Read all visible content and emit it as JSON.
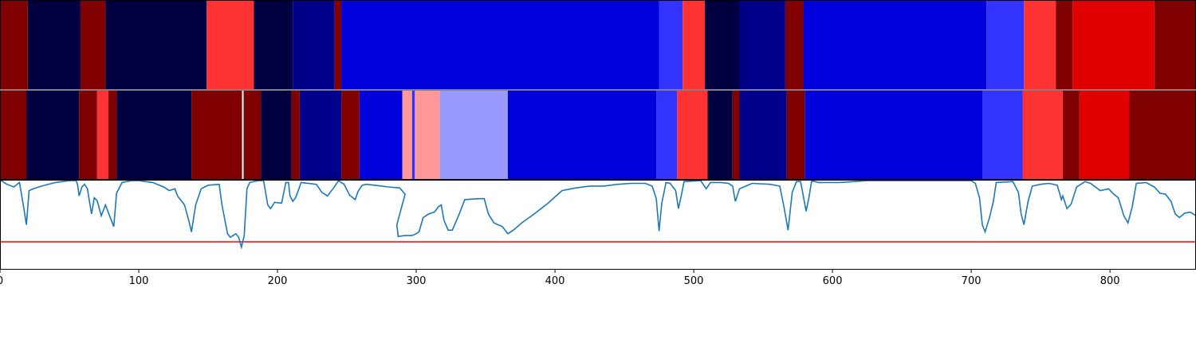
{
  "chart_data": [
    {
      "type": "heatmap",
      "name": "segment-track-1",
      "segments": [
        {
          "start": 0,
          "end": 20,
          "color": "#800000"
        },
        {
          "start": 20,
          "end": 58,
          "color": "#000040"
        },
        {
          "start": 58,
          "end": 76,
          "color": "#800000"
        },
        {
          "start": 76,
          "end": 149,
          "color": "#000040"
        },
        {
          "start": 149,
          "end": 183,
          "color": "#ff3333"
        },
        {
          "start": 183,
          "end": 211,
          "color": "#000040"
        },
        {
          "start": 211,
          "end": 241,
          "color": "#00008b"
        },
        {
          "start": 241,
          "end": 246,
          "color": "#800000"
        },
        {
          "start": 246,
          "end": 475,
          "color": "#0000dd"
        },
        {
          "start": 475,
          "end": 492,
          "color": "#3333ff"
        },
        {
          "start": 492,
          "end": 508,
          "color": "#ff3333"
        },
        {
          "start": 508,
          "end": 533,
          "color": "#000040"
        },
        {
          "start": 533,
          "end": 566,
          "color": "#00008b"
        },
        {
          "start": 566,
          "end": 579,
          "color": "#800000"
        },
        {
          "start": 579,
          "end": 711,
          "color": "#0000dd"
        },
        {
          "start": 711,
          "end": 738,
          "color": "#3333ff"
        },
        {
          "start": 738,
          "end": 761,
          "color": "#ff3333"
        },
        {
          "start": 761,
          "end": 773,
          "color": "#800000"
        },
        {
          "start": 773,
          "end": 832,
          "color": "#e00000"
        },
        {
          "start": 832,
          "end": 862,
          "color": "#800000"
        }
      ]
    },
    {
      "type": "heatmap",
      "name": "segment-track-2",
      "segments": [
        {
          "start": 0,
          "end": 19,
          "color": "#800000"
        },
        {
          "start": 19,
          "end": 57,
          "color": "#000040"
        },
        {
          "start": 57,
          "end": 70,
          "color": "#800000"
        },
        {
          "start": 70,
          "end": 78,
          "color": "#ff3333"
        },
        {
          "start": 78,
          "end": 84,
          "color": "#800000"
        },
        {
          "start": 84,
          "end": 138,
          "color": "#000040"
        },
        {
          "start": 138,
          "end": 188,
          "color": "#800000"
        },
        {
          "start": 188,
          "end": 210,
          "color": "#000040"
        },
        {
          "start": 210,
          "end": 216,
          "color": "#800000"
        },
        {
          "start": 216,
          "end": 246,
          "color": "#00008b"
        },
        {
          "start": 246,
          "end": 259,
          "color": "#800000"
        },
        {
          "start": 259,
          "end": 290,
          "color": "#0000dd"
        },
        {
          "start": 290,
          "end": 297,
          "color": "#ff9999"
        },
        {
          "start": 297,
          "end": 299,
          "color": "#3333ff"
        },
        {
          "start": 299,
          "end": 317,
          "color": "#ff9999"
        },
        {
          "start": 317,
          "end": 366,
          "color": "#9999ff"
        },
        {
          "start": 366,
          "end": 473,
          "color": "#0000dd"
        },
        {
          "start": 473,
          "end": 488,
          "color": "#3333ff"
        },
        {
          "start": 488,
          "end": 510,
          "color": "#ff3333"
        },
        {
          "start": 510,
          "end": 528,
          "color": "#000040"
        },
        {
          "start": 528,
          "end": 533,
          "color": "#800000"
        },
        {
          "start": 533,
          "end": 567,
          "color": "#00008b"
        },
        {
          "start": 567,
          "end": 580,
          "color": "#800000"
        },
        {
          "start": 580,
          "end": 708,
          "color": "#0000dd"
        },
        {
          "start": 708,
          "end": 737,
          "color": "#3333ff"
        },
        {
          "start": 737,
          "end": 766,
          "color": "#ff3333"
        },
        {
          "start": 766,
          "end": 778,
          "color": "#800000"
        },
        {
          "start": 778,
          "end": 814,
          "color": "#e00000"
        },
        {
          "start": 814,
          "end": 862,
          "color": "#800000"
        }
      ],
      "marker_x": 175
    },
    {
      "type": "line",
      "name": "signal-track",
      "xlim": [
        0,
        862
      ],
      "ylim": [
        0,
        1
      ],
      "line_color": "#1f77b4",
      "threshold": 0.31,
      "threshold_color": "#ff0000",
      "xticks": [
        0,
        100,
        200,
        300,
        400,
        500,
        600,
        700,
        800
      ],
      "points": [
        [
          0,
          1.0
        ],
        [
          5,
          0.95
        ],
        [
          10,
          0.92
        ],
        [
          14,
          0.97
        ],
        [
          17,
          0.7
        ],
        [
          19,
          0.5
        ],
        [
          21,
          0.88
        ],
        [
          24,
          0.9
        ],
        [
          30,
          0.93
        ],
        [
          40,
          0.97
        ],
        [
          50,
          0.99
        ],
        [
          55,
          0.99
        ],
        [
          56,
          0.94
        ],
        [
          57,
          0.82
        ],
        [
          59,
          0.92
        ],
        [
          61,
          0.95
        ],
        [
          63,
          0.9
        ],
        [
          66,
          0.62
        ],
        [
          68,
          0.8
        ],
        [
          70,
          0.77
        ],
        [
          73,
          0.6
        ],
        [
          76,
          0.72
        ],
        [
          78,
          0.64
        ],
        [
          82,
          0.48
        ],
        [
          84,
          0.85
        ],
        [
          88,
          0.97
        ],
        [
          95,
          0.99
        ],
        [
          100,
          0.99
        ],
        [
          110,
          0.97
        ],
        [
          118,
          0.92
        ],
        [
          122,
          0.88
        ],
        [
          126,
          0.9
        ],
        [
          128,
          0.82
        ],
        [
          130,
          0.78
        ],
        [
          133,
          0.72
        ],
        [
          136,
          0.55
        ],
        [
          138,
          0.42
        ],
        [
          141,
          0.72
        ],
        [
          145,
          0.9
        ],
        [
          150,
          0.94
        ],
        [
          158,
          0.95
        ],
        [
          160,
          0.72
        ],
        [
          162,
          0.56
        ],
        [
          164,
          0.4
        ],
        [
          166,
          0.36
        ],
        [
          168,
          0.38
        ],
        [
          170,
          0.4
        ],
        [
          172,
          0.36
        ],
        [
          174,
          0.25
        ],
        [
          176,
          0.38
        ],
        [
          178,
          0.9
        ],
        [
          180,
          0.97
        ],
        [
          186,
          0.99
        ],
        [
          190,
          0.99
        ],
        [
          193,
          0.72
        ],
        [
          195,
          0.68
        ],
        [
          198,
          0.75
        ],
        [
          203,
          0.74
        ],
        [
          206,
          0.97
        ],
        [
          208,
          0.97
        ],
        [
          209,
          0.82
        ],
        [
          211,
          0.76
        ],
        [
          213,
          0.8
        ],
        [
          215,
          0.88
        ],
        [
          217,
          0.97
        ],
        [
          228,
          0.95
        ],
        [
          232,
          0.86
        ],
        [
          236,
          0.82
        ],
        [
          240,
          0.9
        ],
        [
          244,
          0.99
        ],
        [
          248,
          0.95
        ],
        [
          252,
          0.83
        ],
        [
          256,
          0.78
        ],
        [
          258,
          0.87
        ],
        [
          261,
          0.94
        ],
        [
          264,
          0.95
        ],
        [
          270,
          0.94
        ],
        [
          280,
          0.92
        ],
        [
          288,
          0.91
        ],
        [
          292,
          0.84
        ],
        [
          286,
          0.5
        ],
        [
          287,
          0.37
        ],
        [
          292,
          0.38
        ],
        [
          297,
          0.38
        ],
        [
          300,
          0.4
        ],
        [
          302,
          0.42
        ],
        [
          305,
          0.58
        ],
        [
          309,
          0.62
        ],
        [
          313,
          0.64
        ],
        [
          316,
          0.7
        ],
        [
          318,
          0.72
        ],
        [
          320,
          0.55
        ],
        [
          323,
          0.44
        ],
        [
          326,
          0.44
        ],
        [
          331,
          0.62
        ],
        [
          335,
          0.78
        ],
        [
          345,
          0.79
        ],
        [
          349,
          0.79
        ],
        [
          352,
          0.62
        ],
        [
          356,
          0.52
        ],
        [
          362,
          0.48
        ],
        [
          366,
          0.4
        ],
        [
          370,
          0.44
        ],
        [
          376,
          0.52
        ],
        [
          385,
          0.62
        ],
        [
          395,
          0.74
        ],
        [
          405,
          0.88
        ],
        [
          415,
          0.91
        ],
        [
          425,
          0.93
        ],
        [
          435,
          0.93
        ],
        [
          445,
          0.95
        ],
        [
          455,
          0.96
        ],
        [
          465,
          0.96
        ],
        [
          470,
          0.93
        ],
        [
          473,
          0.79
        ],
        [
          475,
          0.43
        ],
        [
          477,
          0.74
        ],
        [
          480,
          0.97
        ],
        [
          483,
          0.96
        ],
        [
          487,
          0.88
        ],
        [
          489,
          0.68
        ],
        [
          491,
          0.82
        ],
        [
          493,
          0.98
        ],
        [
          505,
          0.99
        ],
        [
          509,
          0.9
        ],
        [
          512,
          0.97
        ],
        [
          520,
          0.97
        ],
        [
          525,
          0.96
        ],
        [
          528,
          0.93
        ],
        [
          530,
          0.76
        ],
        [
          533,
          0.9
        ],
        [
          542,
          0.96
        ],
        [
          555,
          0.95
        ],
        [
          562,
          0.93
        ],
        [
          565,
          0.7
        ],
        [
          568,
          0.44
        ],
        [
          571,
          0.86
        ],
        [
          574,
          0.98
        ],
        [
          577,
          0.98
        ],
        [
          579,
          0.82
        ],
        [
          581,
          0.65
        ],
        [
          583,
          0.8
        ],
        [
          585,
          0.99
        ],
        [
          590,
          0.97
        ],
        [
          605,
          0.97
        ],
        [
          615,
          0.98
        ],
        [
          625,
          0.99
        ],
        [
          640,
          0.99
        ],
        [
          660,
          0.99
        ],
        [
          680,
          0.99
        ],
        [
          700,
          0.99
        ],
        [
          703,
          0.96
        ],
        [
          706,
          0.8
        ],
        [
          708,
          0.5
        ],
        [
          710,
          0.42
        ],
        [
          713,
          0.57
        ],
        [
          716,
          0.76
        ],
        [
          718,
          0.97
        ],
        [
          730,
          0.98
        ],
        [
          734,
          0.86
        ],
        [
          736,
          0.62
        ],
        [
          738,
          0.5
        ],
        [
          741,
          0.76
        ],
        [
          744,
          0.93
        ],
        [
          750,
          0.95
        ],
        [
          756,
          0.96
        ],
        [
          762,
          0.94
        ],
        [
          765,
          0.78
        ],
        [
          766,
          0.82
        ],
        [
          769,
          0.68
        ],
        [
          772,
          0.73
        ],
        [
          776,
          0.92
        ],
        [
          782,
          0.98
        ],
        [
          786,
          0.96
        ],
        [
          793,
          0.88
        ],
        [
          799,
          0.9
        ],
        [
          802,
          0.85
        ],
        [
          806,
          0.8
        ],
        [
          810,
          0.6
        ],
        [
          813,
          0.52
        ],
        [
          816,
          0.7
        ],
        [
          819,
          0.96
        ],
        [
          826,
          0.97
        ],
        [
          832,
          0.92
        ],
        [
          836,
          0.85
        ],
        [
          840,
          0.84
        ],
        [
          844,
          0.76
        ],
        [
          847,
          0.62
        ],
        [
          850,
          0.58
        ],
        [
          854,
          0.63
        ],
        [
          858,
          0.64
        ],
        [
          862,
          0.6
        ]
      ]
    }
  ]
}
